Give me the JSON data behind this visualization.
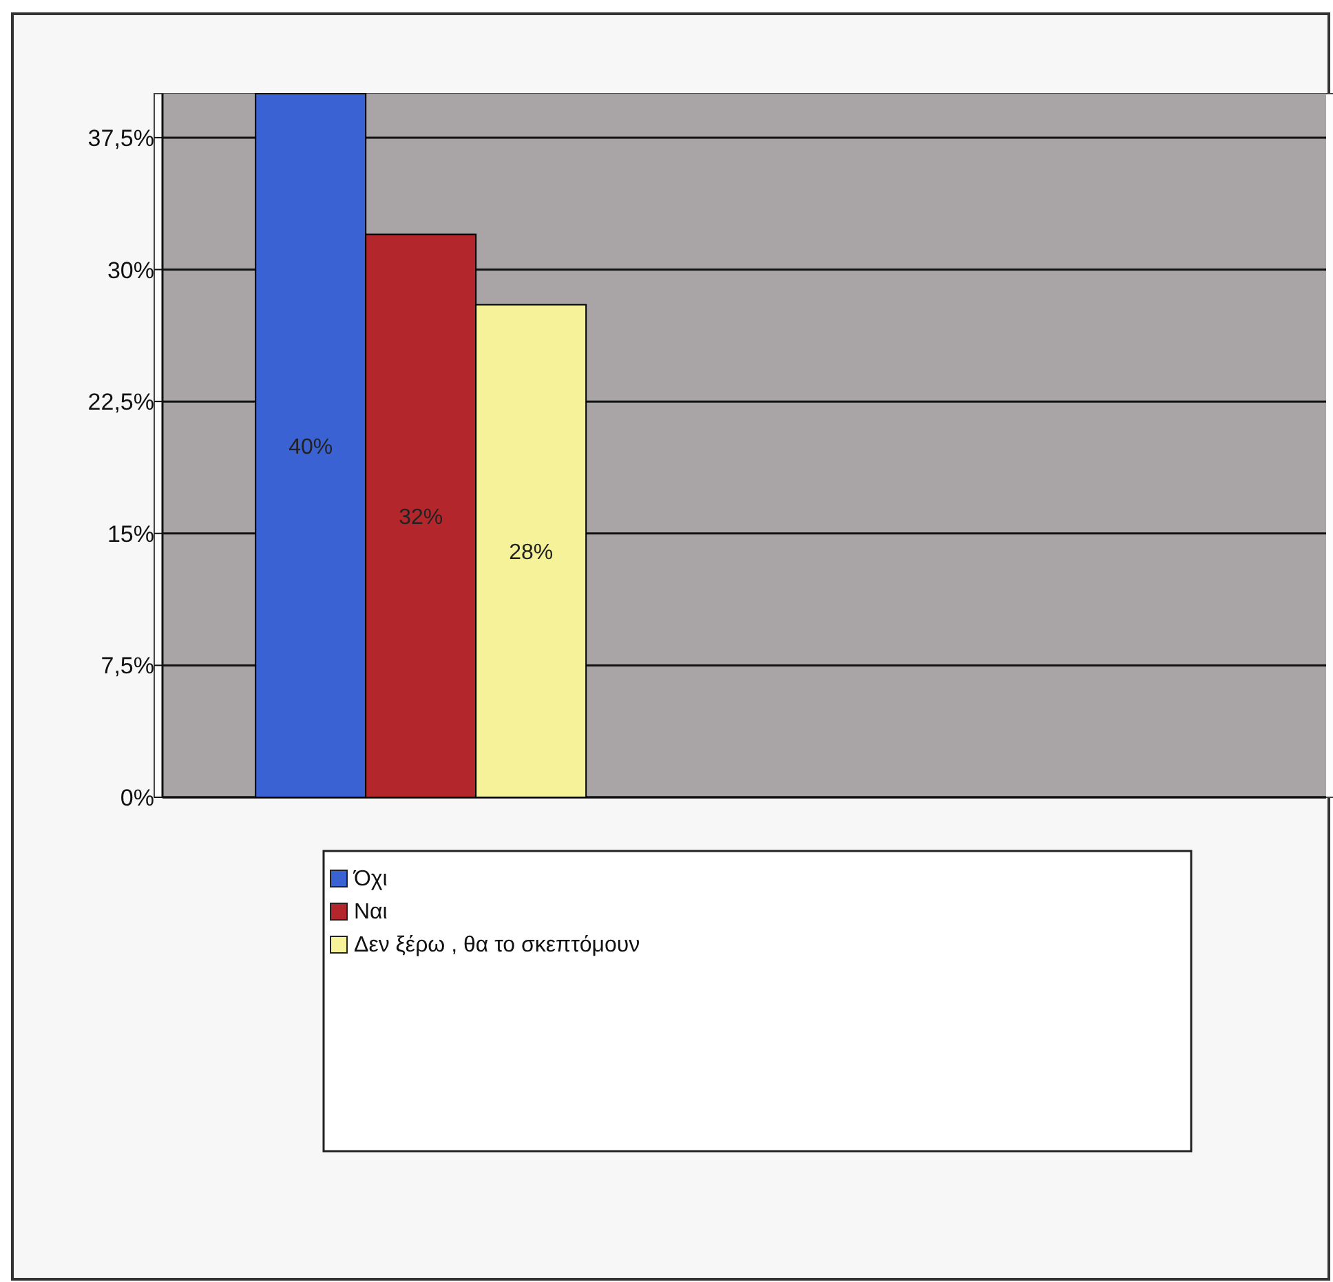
{
  "chart_data": {
    "type": "bar",
    "categories": [
      null
    ],
    "series": [
      {
        "name": "Όχι",
        "color": "#3a62d2",
        "values": [
          40
        ],
        "value_labels": [
          "40%"
        ]
      },
      {
        "name": "Ναι",
        "color": "#b3262c",
        "values": [
          32
        ],
        "value_labels": [
          "32%"
        ]
      },
      {
        "name": "Δεν ξέρω , θα το σκεπτόμουν",
        "color": "#f6f29a",
        "values": [
          28
        ],
        "value_labels": [
          "28%"
        ]
      }
    ],
    "ylim": [
      0,
      40
    ],
    "yticks": [
      {
        "value": 0,
        "label": "0%"
      },
      {
        "value": 7.5,
        "label": "7,5%"
      },
      {
        "value": 15,
        "label": "15%"
      },
      {
        "value": 22.5,
        "label": "22,5%"
      },
      {
        "value": 30,
        "label": "30%"
      },
      {
        "value": 37.5,
        "label": "37,5%"
      }
    ],
    "grid": "y",
    "legend": "bottom"
  }
}
